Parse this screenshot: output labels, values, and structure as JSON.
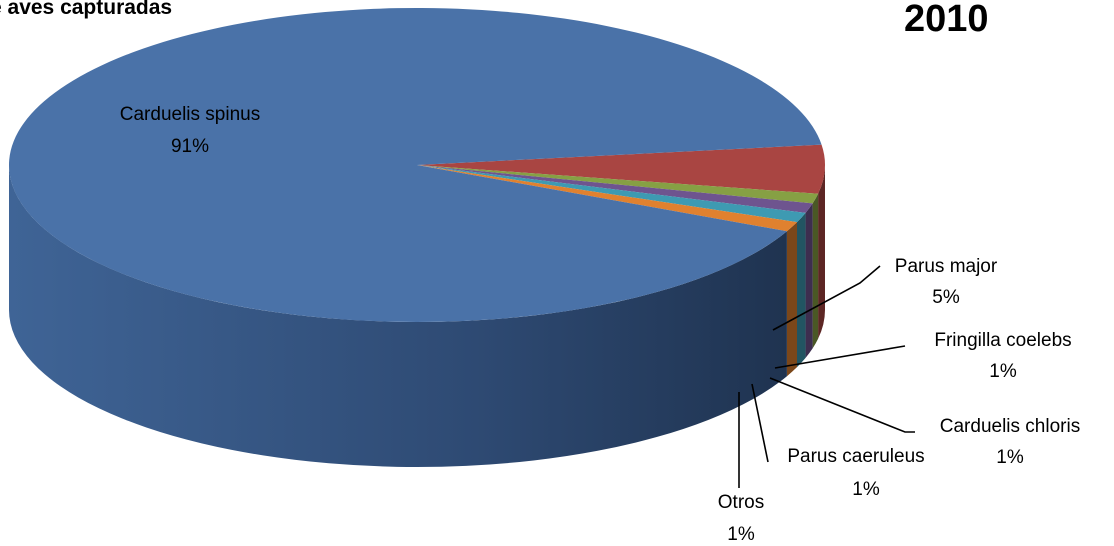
{
  "chart_data": {
    "type": "pie",
    "title": "e aves capturadas",
    "subtitle": "2010",
    "slices": [
      {
        "label": "Carduelis spinus",
        "percent_label": "91%",
        "value": 91,
        "color": "#4A72A8"
      },
      {
        "label": "Parus major",
        "percent_label": "5%",
        "value": 5,
        "color": "#A94542"
      },
      {
        "label": "Fringilla coelebs",
        "percent_label": "1%",
        "value": 1,
        "color": "#86A044"
      },
      {
        "label": "Carduelis chloris",
        "percent_label": "1%",
        "value": 1,
        "color": "#6E548F"
      },
      {
        "label": "Parus caeruleus",
        "percent_label": "1%",
        "value": 1,
        "color": "#3E9AB2"
      },
      {
        "label": "Otros",
        "percent_label": "1%",
        "value": 1,
        "color": "#E0812F"
      }
    ],
    "style": "3d"
  }
}
